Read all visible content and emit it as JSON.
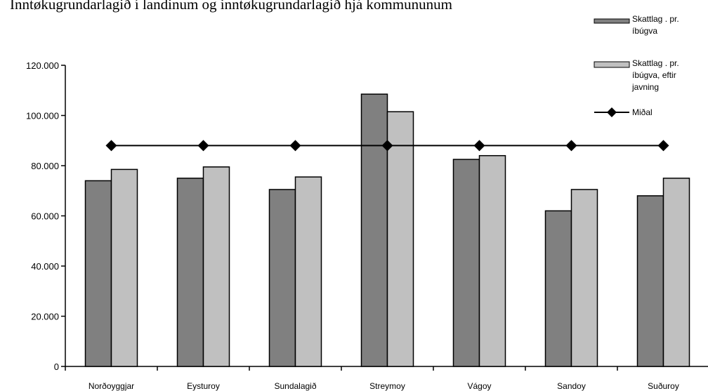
{
  "chart_data": {
    "type": "bar",
    "title": "Inntøkugrundarlagið í landinum og inntøkugrundarlagið hjá kommununum",
    "categories": [
      "Norðoyggjar",
      "Eysturoy",
      "Sundalagið",
      "Streymoy",
      "Vágoy",
      "Sandoy",
      "Suðuroy"
    ],
    "series": [
      {
        "name": "Skattlag . pr. íbúgva",
        "kind": "bar",
        "color": "#808080",
        "values": [
          74000,
          75000,
          70500,
          108500,
          82500,
          62000,
          68000
        ]
      },
      {
        "name": "Skattlag . pr. íbúgva, eftir javning",
        "kind": "bar",
        "color": "#c0c0c0",
        "values": [
          78500,
          79500,
          75500,
          101500,
          84000,
          70500,
          75000
        ]
      },
      {
        "name": "Miðal",
        "kind": "line",
        "color": "#000000",
        "values": [
          88000,
          88000,
          88000,
          88000,
          88000,
          88000,
          88000
        ]
      }
    ],
    "yticks": [
      "0",
      "20.000",
      "40.000",
      "60.000",
      "80.000",
      "100.000",
      "120.000"
    ],
    "ylim": [
      0,
      120000
    ],
    "grid": false,
    "legend_position": "top-right"
  }
}
